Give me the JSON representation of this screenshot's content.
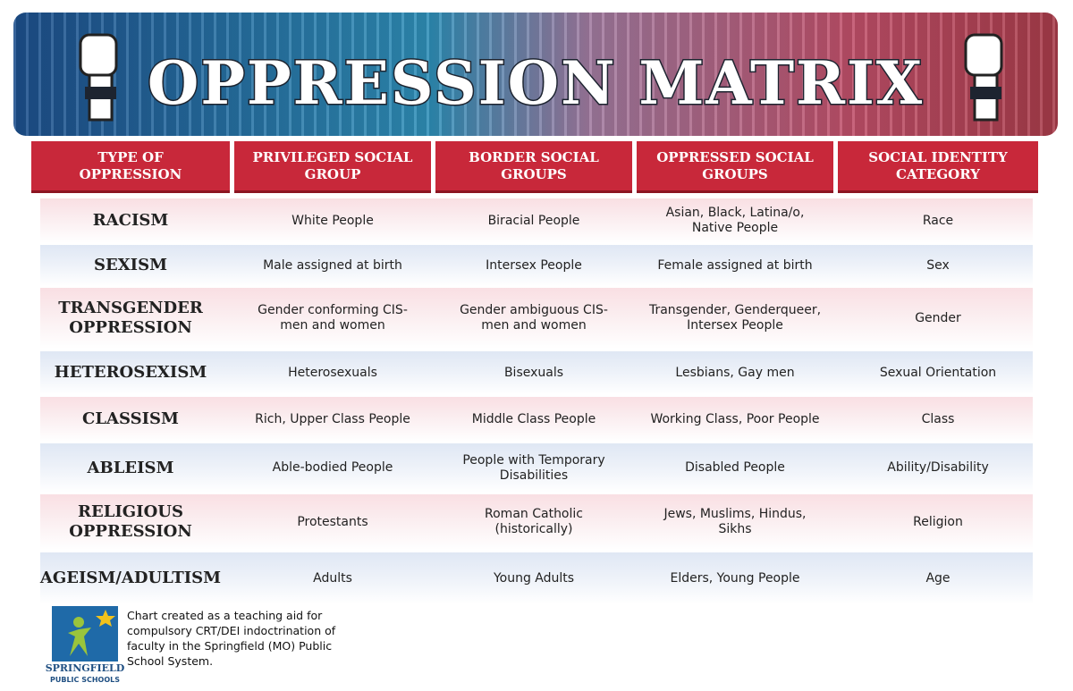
{
  "header": {
    "title": "OPPRESSION MATRIX"
  },
  "table": {
    "columns": [
      "TYPE OF OPPRESSION",
      "PRIVILEGED SOCIAL GROUP",
      "BORDER SOCIAL GROUPS",
      "OPPRESSED SOCIAL GROUPS",
      "SOCIAL IDENTITY CATEGORY"
    ],
    "rows": [
      [
        "RACISM",
        "White People",
        "Biracial People",
        "Asian, Black, Latina/o, Native People",
        "Race"
      ],
      [
        "SEXISM",
        "Male assigned at birth",
        "Intersex People",
        "Female assigned at birth",
        "Sex"
      ],
      [
        "TRANSGENDER OPPRESSION",
        "Gender conforming CIS- men and women",
        "Gender ambiguous CIS- men and women",
        "Transgender, Genderqueer, Intersex People",
        "Gender"
      ],
      [
        "HETEROSEXISM",
        "Heterosexuals",
        "Bisexuals",
        "Lesbians, Gay men",
        "Sexual Orientation"
      ],
      [
        "CLASSISM",
        "Rich, Upper Class People",
        "Middle Class People",
        "Working Class, Poor People",
        "Class"
      ],
      [
        "ABLEISM",
        "Able-bodied People",
        "People with Temporary Disabilities",
        "Disabled People",
        "Ability/Disability"
      ],
      [
        "RELIGIOUS OPPRESSION",
        "Protestants",
        "Roman Catholic (historically)",
        "Jews, Muslims, Hindus, Sikhs",
        "Religion"
      ],
      [
        "AGEISM/ADULTISM",
        "Adults",
        "Young Adults",
        "Elders, Young People",
        "Age"
      ]
    ]
  },
  "footer": {
    "logo_name": "SPRINGFIELD",
    "logo_sub": "PUBLIC SCHOOLS",
    "caption": "Chart created as a teaching aid for compulsory CRT/DEI indoctrination of faculty in the Springfield (MO) Public School System."
  }
}
